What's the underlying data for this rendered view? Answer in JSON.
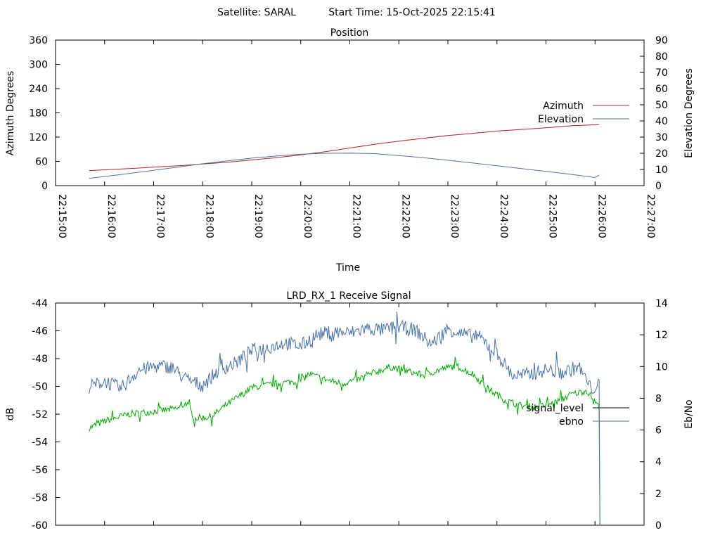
{
  "header": {
    "satellite": "Satellite: SARAL",
    "start_time": "Start Time: 15-Oct-2025 22:15:41"
  },
  "chart_data": [
    {
      "type": "line",
      "title": "Position",
      "xlabel": "Time",
      "ylabel_left": "Azimuth Degrees",
      "ylabel_right": "Elevation Degrees",
      "x_range": [
        "22:15:00",
        "22:27:00"
      ],
      "x_ticks": [
        "22:15:00",
        "22:16:00",
        "22:17:00",
        "22:18:00",
        "22:19:00",
        "22:20:00",
        "22:21:00",
        "22:22:00",
        "22:23:00",
        "22:24:00",
        "22:25:00",
        "22:26:00",
        "22:27:00"
      ],
      "ylim_left": [
        0,
        360
      ],
      "y_ticks_left": [
        0,
        60,
        120,
        180,
        240,
        300,
        360
      ],
      "ylim_right": [
        0,
        90
      ],
      "y_ticks_right": [
        0,
        10,
        20,
        30,
        40,
        50,
        60,
        70,
        80,
        90
      ],
      "grid": false,
      "legend_position": "right",
      "series": [
        {
          "name": "Azimuth",
          "axis": "left",
          "color": "#b22222",
          "points": [
            [
              "22:15:41",
              37
            ],
            [
              "22:16:30",
              42
            ],
            [
              "22:17:30",
              49
            ],
            [
              "22:18:30",
              58
            ],
            [
              "22:19:30",
              69
            ],
            [
              "22:20:00",
              76
            ],
            [
              "22:20:30",
              84
            ],
            [
              "22:21:00",
              93
            ],
            [
              "22:21:30",
              102
            ],
            [
              "22:22:00",
              110
            ],
            [
              "22:22:30",
              117
            ],
            [
              "22:23:00",
              124
            ],
            [
              "22:23:30",
              129
            ],
            [
              "22:24:00",
              135
            ],
            [
              "22:24:30",
              139
            ],
            [
              "22:25:00",
              143
            ],
            [
              "22:25:30",
              148
            ],
            [
              "22:26:05",
              151
            ]
          ]
        },
        {
          "name": "Elevation",
          "axis": "right",
          "color": "#4a72a6",
          "points": [
            [
              "22:15:41",
              4.5
            ],
            [
              "22:16:30",
              7.5
            ],
            [
              "22:17:00",
              9.5
            ],
            [
              "22:17:30",
              11.5
            ],
            [
              "22:18:00",
              13.5
            ],
            [
              "22:18:30",
              15.3
            ],
            [
              "22:19:00",
              17
            ],
            [
              "22:19:30",
              18.3
            ],
            [
              "22:20:00",
              19.5
            ],
            [
              "22:20:30",
              20
            ],
            [
              "22:21:00",
              20.1
            ],
            [
              "22:21:30",
              19.8
            ],
            [
              "22:22:00",
              18.6
            ],
            [
              "22:22:30",
              17.3
            ],
            [
              "22:23:00",
              15.7
            ],
            [
              "22:23:30",
              14
            ],
            [
              "22:24:00",
              12.3
            ],
            [
              "22:24:30",
              10.5
            ],
            [
              "22:25:00",
              8.8
            ],
            [
              "22:25:30",
              7
            ],
            [
              "22:26:00",
              5
            ],
            [
              "22:26:05",
              6.5
            ]
          ]
        }
      ]
    },
    {
      "type": "line",
      "title": "LRD_RX_1 Receive Signal",
      "ylabel_left": "dB",
      "ylabel_right": "Eb/No",
      "x_range": [
        "22:15:00",
        "22:27:00"
      ],
      "ylim_left": [
        -60,
        -44
      ],
      "y_ticks_left": [
        -60,
        -58,
        -56,
        -54,
        -52,
        -50,
        -48,
        -46,
        -44
      ],
      "ylim_right": [
        0,
        14
      ],
      "y_ticks_right": [
        0,
        2,
        4,
        6,
        8,
        10,
        12,
        14
      ],
      "grid": false,
      "legend_position": "right",
      "series": [
        {
          "name": "signal_level",
          "axis": "left",
          "color": "#00aa00",
          "points": [
            [
              "22:15:41",
              -53
            ],
            [
              "22:16:00",
              -52.5
            ],
            [
              "22:16:30",
              -52
            ],
            [
              "22:17:00",
              -51.8
            ],
            [
              "22:17:30",
              -51.6
            ],
            [
              "22:17:40",
              -51.2
            ],
            [
              "22:17:50",
              -52.3
            ],
            [
              "22:18:10",
              -52.2
            ],
            [
              "22:18:30",
              -51.3
            ],
            [
              "22:19:00",
              -50.1
            ],
            [
              "22:19:30",
              -49.8
            ],
            [
              "22:20:00",
              -49.6
            ],
            [
              "22:20:10",
              -49.1
            ],
            [
              "22:20:30",
              -49.5
            ],
            [
              "22:20:50",
              -49.8
            ],
            [
              "22:21:10",
              -49.5
            ],
            [
              "22:21:30",
              -49.0
            ],
            [
              "22:21:50",
              -48.6
            ],
            [
              "22:22:10",
              -48.9
            ],
            [
              "22:22:30",
              -49.2
            ],
            [
              "22:22:50",
              -48.8
            ],
            [
              "22:23:10",
              -48.5
            ],
            [
              "22:23:30",
              -49.1
            ],
            [
              "22:23:50",
              -50.2
            ],
            [
              "22:24:10",
              -51.0
            ],
            [
              "22:24:30",
              -51.4
            ],
            [
              "22:24:50",
              -51.5
            ],
            [
              "22:25:10",
              -51.2
            ],
            [
              "22:25:30",
              -50.6
            ],
            [
              "22:25:50",
              -50.3
            ],
            [
              "22:26:05",
              -51.5
            ],
            [
              "22:26:06",
              -60
            ]
          ]
        },
        {
          "name": "ebno",
          "axis": "right",
          "color": "#4a72a6",
          "points": [
            [
              "22:15:41",
              8.7
            ],
            [
              "22:16:00",
              9.1
            ],
            [
              "22:16:20",
              8.6
            ],
            [
              "22:16:40",
              9.7
            ],
            [
              "22:17:00",
              10.0
            ],
            [
              "22:17:20",
              10.0
            ],
            [
              "22:17:40",
              9.2
            ],
            [
              "22:18:00",
              8.8
            ],
            [
              "22:18:20",
              9.8
            ],
            [
              "22:18:40",
              10.2
            ],
            [
              "22:19:00",
              11.0
            ],
            [
              "22:19:20",
              11.2
            ],
            [
              "22:19:40",
              11.5
            ],
            [
              "22:20:00",
              11.3
            ],
            [
              "22:20:20",
              12.0
            ],
            [
              "22:20:40",
              12.2
            ],
            [
              "22:21:00",
              12.1
            ],
            [
              "22:21:20",
              12.4
            ],
            [
              "22:21:40",
              12.3
            ],
            [
              "22:22:00",
              12.5
            ],
            [
              "22:22:20",
              12.3
            ],
            [
              "22:22:40",
              11.4
            ],
            [
              "22:23:00",
              12.4
            ],
            [
              "22:23:20",
              12.0
            ],
            [
              "22:23:40",
              11.8
            ],
            [
              "22:24:00",
              10.8
            ],
            [
              "22:24:20",
              9.4
            ],
            [
              "22:24:40",
              9.5
            ],
            [
              "22:25:00",
              9.8
            ],
            [
              "22:25:20",
              9.6
            ],
            [
              "22:25:40",
              10.0
            ],
            [
              "22:25:55",
              8.6
            ],
            [
              "22:26:05",
              8.8
            ],
            [
              "22:26:06",
              0
            ]
          ]
        }
      ]
    }
  ]
}
